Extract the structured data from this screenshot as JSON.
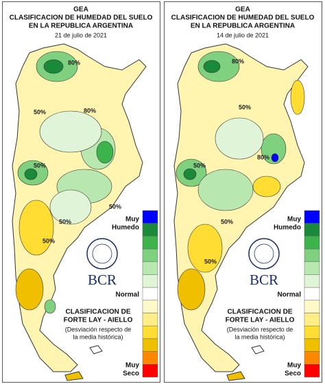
{
  "panels": [
    {
      "header": {
        "org": "GEA",
        "title_line1": "CLASIFICACION DE HUMEDAD DEL SUELO",
        "title_line2": "EN LA REPUBLICA ARGENTINA",
        "date": "21 de julio de 2021"
      },
      "legend": {
        "top_line1": "Muy",
        "top_line2": "Humedo",
        "middle": "Normal",
        "bottom_line1": "Muy",
        "bottom_line2": "Seco"
      },
      "logo": "BCR",
      "method": {
        "line1": "CLASIFICACION DE",
        "line2": "FORTE LAY - AIELLO",
        "note1": "(Desviación respecto de",
        "note2": "la media histórica)"
      },
      "contour_labels": [
        "80%",
        "50%",
        "80%",
        "50%",
        "50%",
        "50%",
        "50%"
      ]
    },
    {
      "header": {
        "org": "GEA",
        "title_line1": "CLASIFICACION DE HUMEDAD DEL SUELO",
        "title_line2": "EN LA REPUBLICA ARGENTINA",
        "date": "14 de julio de 2021"
      },
      "legend": {
        "top_line1": "Muy",
        "top_line2": "Humedo",
        "middle": "Normal",
        "bottom_line1": "Muy",
        "bottom_line2": "Seco"
      },
      "logo": "BCR",
      "method": {
        "line1": "CLASIFICACION DE",
        "line2": "FORTE LAY - AIELLO",
        "note1": "(Desviación respecto de",
        "note2": "la media histórica)"
      },
      "contour_labels": [
        "80%",
        "50%",
        "80%",
        "50%",
        "50%",
        "50%"
      ]
    }
  ]
}
